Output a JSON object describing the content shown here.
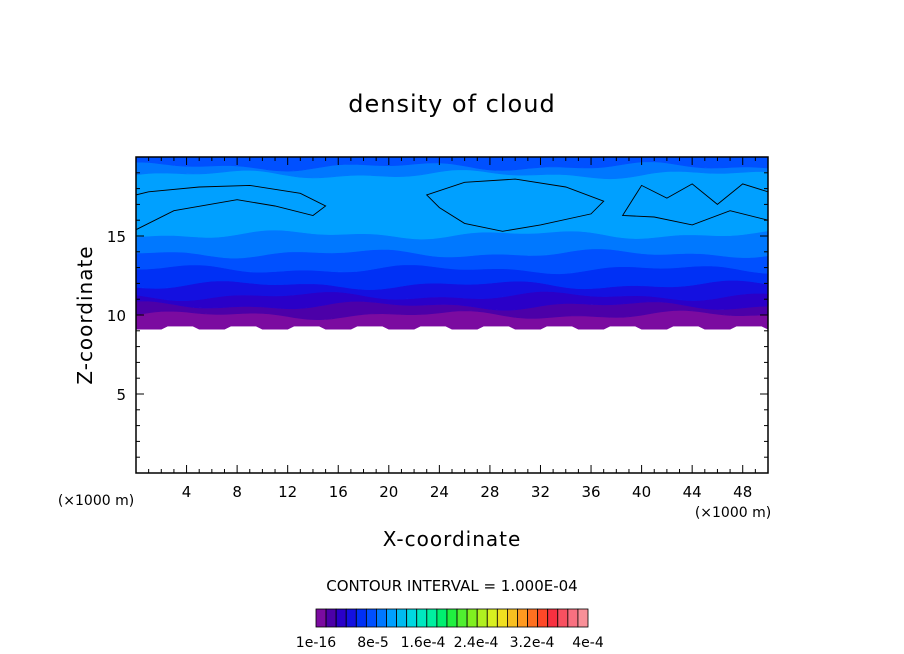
{
  "chart_data": {
    "type": "heatmap",
    "title": "density of cloud",
    "xlabel": "X-coordinate",
    "ylabel": "Z-coordinate",
    "x_unit": "(×1000 m)",
    "y_unit": "(×1000 m)",
    "xlim": [
      0,
      50
    ],
    "ylim": [
      0,
      20
    ],
    "x_ticks": [
      4,
      8,
      12,
      16,
      20,
      24,
      28,
      32,
      36,
      40,
      44,
      48
    ],
    "y_ticks": [
      5,
      10,
      15
    ],
    "contour_interval_label": "CONTOUR INTERVAL = 1.000E-04",
    "colorbar": {
      "labels": [
        "1e-16",
        "8e-5",
        "1.6e-4",
        "2.4e-4",
        "3.2e-4",
        "4e-4"
      ],
      "colors": [
        "#7B0BA0",
        "#4C00A8",
        "#2A00C8",
        "#1410E0",
        "#0030F5",
        "#0050FF",
        "#0078FF",
        "#00A0FF",
        "#00BCF0",
        "#00D8E0",
        "#00E8C0",
        "#00F0A0",
        "#00F070",
        "#20F040",
        "#50F030",
        "#80F020",
        "#B0F020",
        "#D8F020",
        "#F0E020",
        "#F8C020",
        "#FF9A20",
        "#FF7020",
        "#FF4828",
        "#F83040",
        "#F85060",
        "#F87080",
        "#F89098"
      ]
    },
    "bands": [
      {
        "z_bottom": 9.3,
        "z_top": 10.0,
        "color": "#7B0BA0"
      },
      {
        "z_bottom": 10.0,
        "z_top": 10.6,
        "color": "#4C00A8"
      },
      {
        "z_bottom": 10.6,
        "z_top": 11.2,
        "color": "#2A00C8"
      },
      {
        "z_bottom": 11.2,
        "z_top": 11.9,
        "color": "#1410E0"
      },
      {
        "z_bottom": 11.9,
        "z_top": 12.9,
        "color": "#0030F5"
      },
      {
        "z_bottom": 12.9,
        "z_top": 13.9,
        "color": "#0050FF"
      },
      {
        "z_bottom": 13.9,
        "z_top": 15.1,
        "color": "#0078FF"
      },
      {
        "z_bottom": 15.1,
        "z_top": 18.9,
        "color": "#00A0FF"
      },
      {
        "z_bottom": 18.9,
        "z_top": 19.4,
        "color": "#0078FF"
      },
      {
        "z_bottom": 19.4,
        "z_top": 20.0,
        "color": "#0050FF"
      }
    ]
  }
}
